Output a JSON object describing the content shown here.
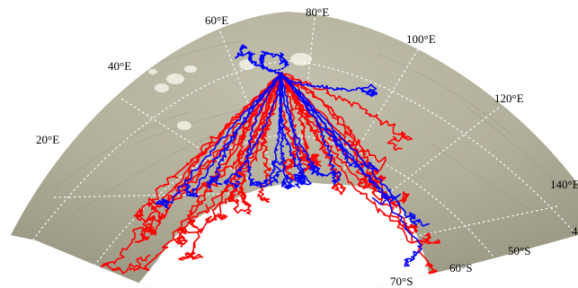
{
  "map": {
    "projection": "polar stereographic sector, East Antarctica / Southern Ocean",
    "longitude_labels": [
      "20°E",
      "40°E",
      "60°E",
      "80°E",
      "100°E",
      "120°E",
      "140°E"
    ],
    "latitude_labels": [
      "50°S",
      "60°S",
      "70°S"
    ],
    "colors": {
      "background_ocean": "#b7b39f",
      "ice": "#ffffff",
      "grid": "#ffffff",
      "track_red": "#ff0000",
      "track_blue": "#0000ff"
    },
    "series": [
      {
        "color_key": "track_red"
      },
      {
        "color_key": "track_blue"
      }
    ]
  }
}
